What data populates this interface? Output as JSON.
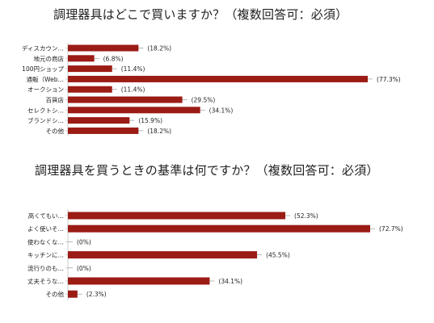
{
  "colors": {
    "bar": "#9b1b15",
    "axis": "#cccccc",
    "text": "#222222"
  },
  "chart_data": [
    {
      "type": "bar",
      "orientation": "horizontal",
      "title": "調理器具はどこで買いますか？（複数回答可：必須）",
      "categories": [
        "ディスカウン…",
        "地元の商店",
        "100円ショップ",
        "通販（Web…",
        "オークション",
        "百貨店",
        "セレクトシ…",
        "ブランドシ…",
        "その他"
      ],
      "values": [
        18.2,
        6.8,
        11.4,
        77.3,
        11.4,
        29.5,
        34.1,
        15.9,
        18.2
      ],
      "value_labels": [
        "(18.2%)",
        "(6.8%)",
        "(11.4%)",
        "(77.3%)",
        "(11.4%)",
        "(29.5%)",
        "(34.1%)",
        "(15.9%)",
        "(18.2%)"
      ],
      "xlim": [
        0,
        80
      ],
      "grid": false,
      "legend": "none"
    },
    {
      "type": "bar",
      "orientation": "horizontal",
      "title": "調理器具を買うときの基準は何ですか？（複数回答可：必須）",
      "categories": [
        "高くてもい…",
        "よく使いそ…",
        "使わなくな…",
        "キッチンに…",
        "流行りのも…",
        "丈夫そうな…",
        "その他"
      ],
      "values": [
        52.3,
        72.7,
        0,
        45.5,
        0,
        34.1,
        2.3
      ],
      "value_labels": [
        "(52.3%)",
        "(72.7%)",
        "(0%)",
        "(45.5%)",
        "(0%)",
        "(34.1%)",
        "(2.3%)"
      ],
      "xlim": [
        0,
        72.7
      ],
      "grid": false,
      "legend": "none"
    }
  ]
}
